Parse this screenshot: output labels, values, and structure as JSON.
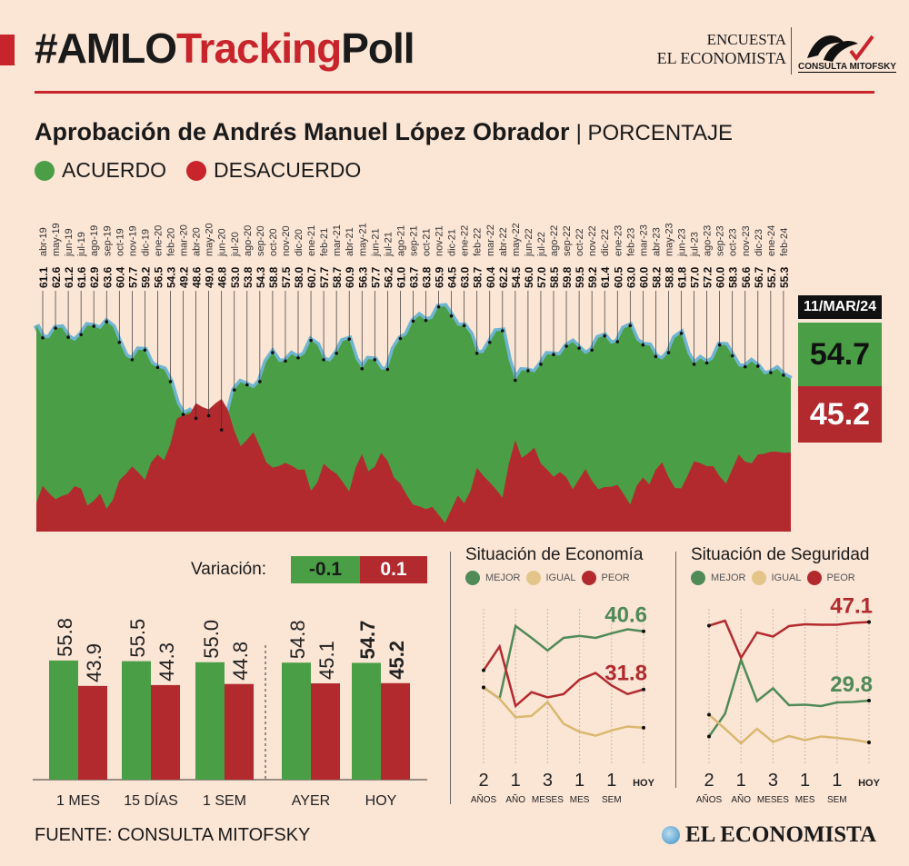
{
  "header": {
    "hashtag": "#AMLO",
    "tracking": "Tracking",
    "poll": "Poll",
    "encuesta": "ENCUESTA",
    "el_economista": "EL ECONOMISTA",
    "mitofsky_logo": "CONSULTA MITOFSKY"
  },
  "subtitle": {
    "main": "Aprobación de Andrés Manuel López Obrador",
    "unit": "| PORCENTAJE"
  },
  "legend": {
    "acuerdo": "ACUERDO",
    "desacuerdo": "DESACUERDO"
  },
  "colors": {
    "green": "#4a9e45",
    "red": "#b22a2e",
    "line": "#6fb5cf",
    "bg": "#fbe5d5"
  },
  "current": {
    "date": "11/MAR/24",
    "acuerdo": "54.7",
    "desacuerdo": "45.2"
  },
  "variation": {
    "label": "Variación:",
    "acuerdo": "-0.1",
    "desacuerdo": "0.1"
  },
  "chart_data": [
    {
      "type": "area",
      "title": "Aprobación de Andrés Manuel López Obrador",
      "ylabel": "PORCENTAJE",
      "ylim": [
        31,
        67
      ],
      "categories": [
        "abr-19",
        "may-19",
        "jun-19",
        "jul-19",
        "ago-19",
        "sep-19",
        "oct-19",
        "nov-19",
        "dic-19",
        "ene-20",
        "feb-20",
        "mar-20",
        "abr-20",
        "may-20",
        "jun-20",
        "jul-20",
        "ago-20",
        "sep-20",
        "oct-20",
        "nov-20",
        "dic-20",
        "ene-21",
        "feb-21",
        "mar-21",
        "abr-21",
        "may-21",
        "jun-21",
        "jul-21",
        "ago-21",
        "sep-21",
        "oct-21",
        "nov-21",
        "dic-21",
        "ene-22",
        "feb-22",
        "mar-22",
        "abr-22",
        "may-22",
        "jun-22",
        "jul-22",
        "ago-22",
        "sep-22",
        "oct-22",
        "nov-22",
        "dic-22",
        "ene-23",
        "feb-23",
        "mar-23",
        "abr-23",
        "may-23",
        "jun-23",
        "jul-23",
        "ago-23",
        "sep-23",
        "oct-23",
        "nov-23",
        "dic-23",
        "ene-24",
        "feb-24"
      ],
      "series": [
        {
          "name": "ACUERDO",
          "values": [
            61.1,
            62.6,
            61.2,
            61.6,
            62.9,
            63.6,
            60.4,
            57.7,
            59.2,
            56.5,
            54.3,
            49.2,
            48.6,
            49.0,
            46.8,
            53.0,
            53.8,
            54.3,
            58.8,
            57.5,
            58.0,
            60.7,
            57.7,
            58.7,
            60.9,
            56.3,
            57.7,
            56.2,
            61.0,
            63.7,
            63.8,
            65.9,
            64.5,
            63.0,
            58.7,
            60.4,
            62.2,
            54.5,
            56.0,
            57.0,
            58.5,
            59.8,
            59.5,
            59.2,
            61.4,
            60.5,
            63.0,
            60.0,
            58.2,
            58.8,
            61.8,
            57.0,
            57.2,
            60.0,
            58.3,
            56.6,
            56.7,
            55.7,
            55.3
          ]
        }
      ]
    },
    {
      "type": "bar",
      "categories": [
        "1 MES",
        "15 DÍAS",
        "1 SEM",
        "AYER",
        "HOY"
      ],
      "series": [
        {
          "name": "ACUERDO",
          "values": [
            "55.8",
            "55.5",
            "55.0",
            "54.8",
            "54.7"
          ]
        },
        {
          "name": "DESACUERDO",
          "values": [
            "43.9",
            "44.3",
            "44.8",
            "45.1",
            "45.2"
          ]
        }
      ],
      "ylim": [
        0,
        60
      ]
    },
    {
      "type": "line",
      "title": "Situación de Economía",
      "legend": [
        "MEJOR",
        "IGUAL",
        "PEOR"
      ],
      "x_labels": [
        [
          "2",
          "AÑOS"
        ],
        [
          "1",
          "AÑO"
        ],
        [
          "3",
          "MESES"
        ],
        [
          "1",
          "MES"
        ],
        [
          "1",
          "SEM"
        ],
        [
          "HOY",
          ""
        ]
      ],
      "series": [
        {
          "name": "MEJOR",
          "values": [
            32.1,
            30.4,
            41.4,
            39.6,
            37.7,
            39.6,
            39.9,
            39.6,
            40.3,
            40.9,
            40.6
          ]
        },
        {
          "name": "IGUAL",
          "values": [
            32.1,
            30.4,
            27.6,
            27.8,
            29.9,
            26.6,
            25.4,
            24.8,
            25.6,
            26.2,
            26.0
          ]
        },
        {
          "name": "PEOR",
          "values": [
            34.7,
            38.3,
            29.3,
            31.4,
            30.6,
            31.1,
            33.3,
            34.3,
            32.4,
            31.1,
            31.8
          ]
        }
      ],
      "annotations": [
        "40.6",
        "31.8"
      ],
      "ylim": [
        22,
        44
      ]
    },
    {
      "type": "line",
      "title": "Situación de Seguridad",
      "legend": [
        "MEJOR",
        "IGUAL",
        "PEOR"
      ],
      "x_labels": [
        [
          "2",
          "AÑOS"
        ],
        [
          "1",
          "AÑO"
        ],
        [
          "3",
          "MESES"
        ],
        [
          "1",
          "MES"
        ],
        [
          "1",
          "SEM"
        ],
        [
          "HOY",
          ""
        ]
      ],
      "series": [
        {
          "name": "MEJOR",
          "values": [
            21.9,
            26.9,
            38.8,
            29.7,
            32.5,
            28.8,
            28.9,
            28.6,
            29.4,
            29.5,
            29.8
          ]
        },
        {
          "name": "IGUAL",
          "values": [
            26.7,
            23.6,
            20.4,
            23.6,
            20.7,
            22.0,
            21.1,
            21.9,
            21.6,
            21.2,
            20.6
          ]
        },
        {
          "name": "PEOR",
          "values": [
            46.3,
            47.4,
            39.2,
            44.8,
            43.9,
            46.2,
            46.6,
            46.5,
            46.5,
            46.9,
            47.1
          ]
        }
      ],
      "annotations": [
        "47.1",
        "29.8"
      ],
      "ylim": [
        18,
        50
      ]
    }
  ],
  "footer": {
    "source": "FUENTE: CONSULTA MITOFSKY",
    "brand": "EL ECONOMISTA"
  }
}
